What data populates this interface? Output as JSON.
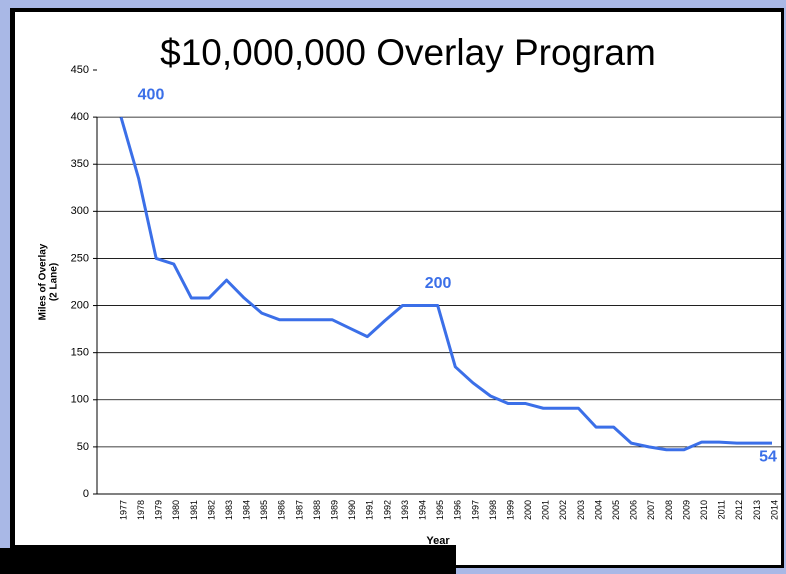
{
  "chart_data": {
    "type": "line",
    "title": "$10,000,000 Overlay Program",
    "xlabel": "Year",
    "ylabel": [
      "Miles of Overlay",
      "(2 Lane)"
    ],
    "categories": [
      "1977",
      "1978",
      "1979",
      "1980",
      "1981",
      "1982",
      "1983",
      "1984",
      "1985",
      "1986",
      "1987",
      "1988",
      "1989",
      "1990",
      "1991",
      "1992",
      "1993",
      "1994",
      "1995",
      "1996",
      "1997",
      "1998",
      "1999",
      "2000",
      "2001",
      "2002",
      "2003",
      "2004",
      "2005",
      "2006",
      "2007",
      "2008",
      "2009",
      "2010",
      "2011",
      "2012",
      "2013",
      "2014"
    ],
    "series": [
      {
        "name": "Miles of Overlay",
        "color": "#3b6fe8",
        "values": [
          400,
          335,
          250,
          244,
          208,
          208,
          227,
          208,
          192,
          185,
          185,
          185,
          185,
          176,
          167,
          184,
          200,
          200,
          200,
          135,
          118,
          104,
          96,
          96,
          91,
          91,
          91,
          71,
          71,
          54,
          50,
          47,
          47,
          55,
          55,
          54,
          54,
          54
        ]
      }
    ],
    "data_labels": [
      0,
      17,
      37
    ],
    "ylim": [
      0,
      450
    ],
    "yticks": [
      0,
      50,
      100,
      150,
      200,
      250,
      300,
      350,
      400,
      450
    ],
    "grid": true
  }
}
